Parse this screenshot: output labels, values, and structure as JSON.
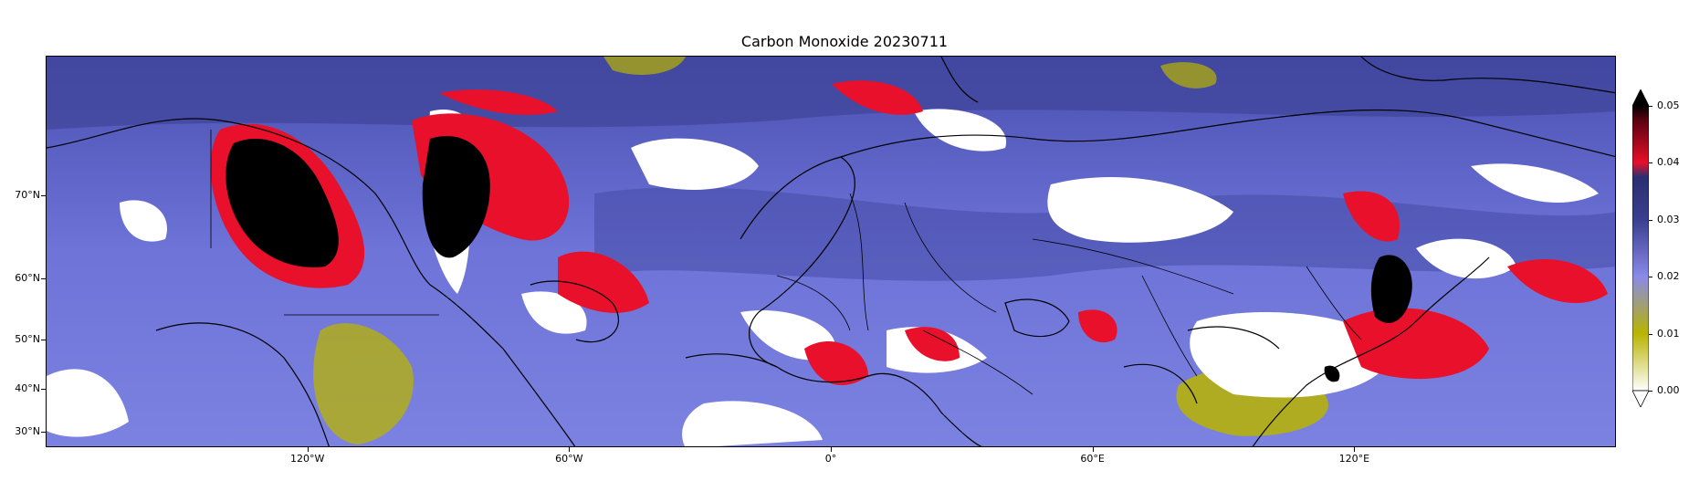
{
  "title": "Carbon Monoxide 20230711",
  "lat_labels": [
    {
      "text": "70°N",
      "lat": 70
    },
    {
      "text": "60°N",
      "lat": 60
    },
    {
      "text": "50°N",
      "lat": 50
    },
    {
      "text": "40°N",
      "lat": 40
    },
    {
      "text": "30°N",
      "lat": 30
    }
  ],
  "lon_labels": [
    {
      "text": "120°W",
      "lon": -120
    },
    {
      "text": "60°W",
      "lon": -60
    },
    {
      "text": "0°",
      "lon": 0
    },
    {
      "text": "60°E",
      "lon": 60
    },
    {
      "text": "120°E",
      "lon": 120
    }
  ],
  "colorbar": {
    "ticks": [
      "0.05",
      "0.04",
      "0.03",
      "0.02",
      "0.01",
      "0.00"
    ],
    "min": 0.0,
    "max": 0.05,
    "extend": "both",
    "colors": [
      "#ffffff",
      "#b8b400",
      "#8a8ae8",
      "#3a3f90",
      "#e8102a",
      "#000000"
    ]
  },
  "map": {
    "background_color": "#6e74d8",
    "cloud_color": "#ffffff",
    "high_color": "#e8102a",
    "extreme_color": "#000000",
    "low_color": "#b8b400"
  }
}
